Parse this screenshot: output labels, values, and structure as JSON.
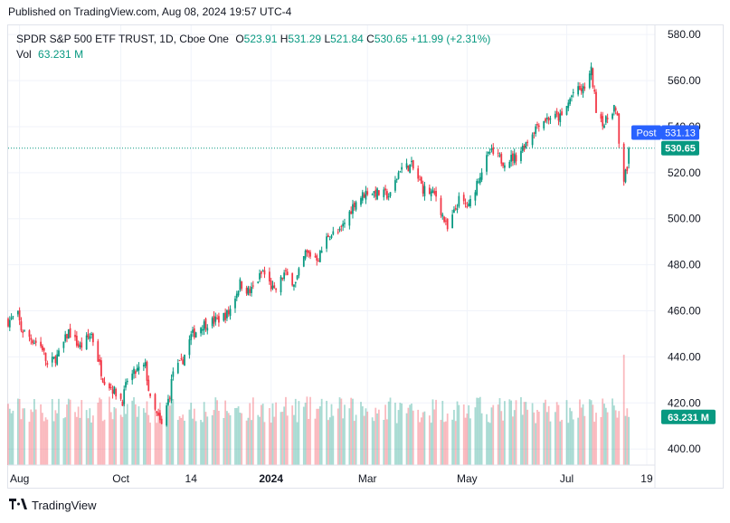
{
  "header": {
    "published": "Published on TradingView.com, Aug 08, 2024 19:57 UTC-4"
  },
  "legend": {
    "symbol": "SPDR S&P 500 ETF TRUST, 1D, Cboe One",
    "open_label": "O",
    "open": "523.91",
    "high_label": "H",
    "high": "531.29",
    "low_label": "L",
    "low": "521.84",
    "close_label": "C",
    "close": "530.65",
    "change": "+11.99 (+2.31%)",
    "vol_label": "Vol",
    "vol": "63.231 M"
  },
  "badges": {
    "post_label": "Post",
    "post_price": "531.13",
    "last_price": "530.65",
    "volume": "63.231 M"
  },
  "footer": {
    "brand": "TradingView"
  },
  "colors": {
    "up": "#089981",
    "down": "#f23645",
    "post": "#2962ff",
    "grid": "#f0f3fa",
    "text": "#131722"
  },
  "chart_data": {
    "type": "candlestick",
    "ylim": [
      393,
      584
    ],
    "y_ticks": [
      400,
      420,
      440,
      460,
      480,
      500,
      520,
      540,
      560,
      580
    ],
    "y_tick_labels": [
      "400.00",
      "420.00",
      "440.00",
      "460.00",
      "480.00",
      "500.00",
      "520.00",
      "540.00",
      "560.00",
      "580.00"
    ],
    "x_labels": [
      {
        "label": "Aug",
        "date": "2023-08-01"
      },
      {
        "label": "Oct",
        "date": "2023-10-02"
      },
      {
        "label": "14",
        "date": "2023-11-14"
      },
      {
        "label": "2024",
        "date": "2024-01-02",
        "bold": true
      },
      {
        "label": "Mar",
        "date": "2024-03-01"
      },
      {
        "label": "May",
        "date": "2024-05-01"
      },
      {
        "label": "Jul",
        "date": "2024-07-01"
      },
      {
        "label": "19",
        "date": "2024-08-19"
      }
    ],
    "x_range": [
      "2023-07-25",
      "2024-08-24"
    ],
    "last_date": "2024-08-08",
    "last_close": 530.65,
    "post_price": 531.13,
    "latest_volume_m": 63.231,
    "close_path": [
      [
        "2023-07-25",
        455.5
      ],
      [
        "2023-07-31",
        458
      ],
      [
        "2023-08-02",
        452
      ],
      [
        "2023-08-08",
        448
      ],
      [
        "2023-08-15",
        444
      ],
      [
        "2023-08-18",
        436
      ],
      [
        "2023-08-25",
        441
      ],
      [
        "2023-08-31",
        451
      ],
      [
        "2023-09-07",
        444
      ],
      [
        "2023-09-14",
        450
      ],
      [
        "2023-09-21",
        431
      ],
      [
        "2023-09-27",
        426
      ],
      [
        "2023-10-03",
        421
      ],
      [
        "2023-10-06",
        430
      ],
      [
        "2023-10-12",
        434
      ],
      [
        "2023-10-17",
        436
      ],
      [
        "2023-10-20",
        421
      ],
      [
        "2023-10-27",
        410
      ],
      [
        "2023-11-01",
        424
      ],
      [
        "2023-11-03",
        434
      ],
      [
        "2023-11-08",
        437
      ],
      [
        "2023-11-14",
        449
      ],
      [
        "2023-11-21",
        454
      ],
      [
        "2023-11-30",
        456
      ],
      [
        "2023-12-07",
        459
      ],
      [
        "2023-12-14",
        472
      ],
      [
        "2023-12-20",
        468
      ],
      [
        "2023-12-28",
        477
      ],
      [
        "2024-01-04",
        468
      ],
      [
        "2024-01-10",
        476
      ],
      [
        "2024-01-17",
        472
      ],
      [
        "2024-01-23",
        485
      ],
      [
        "2024-01-31",
        483
      ],
      [
        "2024-02-06",
        493
      ],
      [
        "2024-02-13",
        494
      ],
      [
        "2024-02-22",
        507
      ],
      [
        "2024-03-01",
        512
      ],
      [
        "2024-03-08",
        511
      ],
      [
        "2024-03-15",
        510
      ],
      [
        "2024-03-21",
        522
      ],
      [
        "2024-03-28",
        523
      ],
      [
        "2024-04-04",
        513
      ],
      [
        "2024-04-12",
        510
      ],
      [
        "2024-04-19",
        495
      ],
      [
        "2024-04-26",
        508
      ],
      [
        "2024-05-02",
        505
      ],
      [
        "2024-05-08",
        518
      ],
      [
        "2024-05-15",
        529
      ],
      [
        "2024-05-23",
        525
      ],
      [
        "2024-05-31",
        527
      ],
      [
        "2024-06-07",
        534
      ],
      [
        "2024-06-14",
        542
      ],
      [
        "2024-06-21",
        544
      ],
      [
        "2024-06-28",
        544
      ],
      [
        "2024-07-05",
        555
      ],
      [
        "2024-07-11",
        556
      ],
      [
        "2024-07-16",
        564
      ],
      [
        "2024-07-19",
        548
      ],
      [
        "2024-07-24",
        541
      ],
      [
        "2024-07-30",
        549
      ],
      [
        "2024-08-01",
        543
      ],
      [
        "2024-08-02",
        532
      ],
      [
        "2024-08-05",
        517
      ],
      [
        "2024-08-06",
        522
      ],
      [
        "2024-08-07",
        518.7
      ],
      [
        "2024-08-08",
        530.65
      ]
    ]
  }
}
